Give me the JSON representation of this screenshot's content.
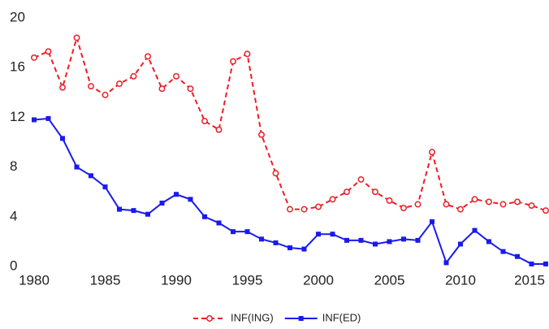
{
  "chart_data": {
    "type": "line",
    "x": [
      1980,
      1981,
      1982,
      1983,
      1984,
      1985,
      1986,
      1987,
      1988,
      1989,
      1990,
      1991,
      1992,
      1993,
      1994,
      1995,
      1996,
      1997,
      1998,
      1999,
      2000,
      2001,
      2002,
      2003,
      2004,
      2005,
      2006,
      2007,
      2008,
      2009,
      2010,
      2011,
      2012,
      2013,
      2014,
      2015,
      2016
    ],
    "series": [
      {
        "name": "INF(ING)",
        "color": "#ee1c24",
        "dashed": true,
        "marker": "circle",
        "values": [
          16.8,
          17.3,
          14.4,
          18.4,
          14.5,
          13.8,
          14.7,
          15.3,
          16.9,
          14.3,
          15.3,
          14.3,
          11.7,
          11.0,
          16.5,
          17.1,
          10.6,
          7.5,
          4.6,
          4.6,
          4.8,
          5.4,
          6.0,
          7.0,
          6.0,
          5.3,
          4.7,
          5.0,
          9.2,
          5.0,
          4.6,
          5.4,
          5.2,
          5.0,
          5.2,
          4.9,
          4.5
        ]
      },
      {
        "name": "INF(ED)",
        "color": "#1a1aee",
        "dashed": false,
        "marker": "square",
        "values": [
          11.8,
          11.9,
          10.3,
          8.0,
          7.3,
          6.4,
          4.6,
          4.5,
          4.2,
          5.1,
          5.8,
          5.4,
          4.0,
          3.5,
          2.8,
          2.8,
          2.2,
          1.9,
          1.5,
          1.4,
          2.6,
          2.6,
          2.1,
          2.1,
          1.8,
          2.0,
          2.2,
          2.1,
          3.6,
          0.3,
          1.8,
          2.9,
          2.0,
          1.2,
          0.8,
          0.2,
          0.2
        ]
      }
    ],
    "xlim": [
      1980,
      2016
    ],
    "xticks": [
      1980,
      1985,
      1990,
      1995,
      2000,
      2005,
      2010,
      2015
    ],
    "ylim": [
      0,
      20
    ],
    "yticks": [
      0,
      4,
      8,
      12,
      16,
      20
    ],
    "grid": false,
    "legend": "bottom"
  }
}
